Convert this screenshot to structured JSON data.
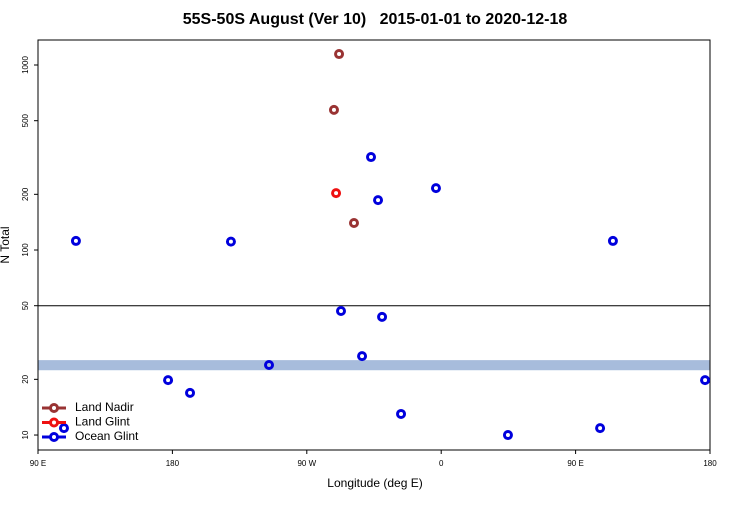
{
  "chart_data": {
    "type": "scatter",
    "title": "55S-50S August (Ver 10)   2015-01-01 to 2020-12-18",
    "xlabel": "Longitude (deg E)",
    "ylabel": "N Total",
    "log_y": true,
    "xlim": [
      90,
      540
    ],
    "xticks": [
      {
        "value": 90,
        "label": "90 E"
      },
      180,
      {
        "value": 270,
        "label": "90 W"
      },
      {
        "value": 360,
        "label": "0"
      },
      {
        "value": 450,
        "label": "90 E"
      },
      {
        "value": 540,
        "label": "180"
      }
    ],
    "ylim": [
      8.3,
      1365
    ],
    "yticks": [
      10,
      20,
      50,
      100,
      200,
      500,
      1000
    ],
    "hline": 50,
    "band": [
      22.4,
      25.4
    ],
    "band_color": "#a7bcdc",
    "legend": "lower left",
    "series": [
      {
        "name": "Land Nadir",
        "color": "#993333",
        "x": [
          291.6,
          288.2,
          301.6
        ],
        "values": [
          1146,
          572,
          140
        ]
      },
      {
        "name": "Land Glint",
        "color": "#ee1111",
        "x": [
          289.6
        ],
        "values": [
          203
        ]
      },
      {
        "name": "Ocean Glint",
        "color": "#0000dd",
        "x": [
          115.4,
          219.2,
          313,
          356.5,
          317.7,
          475,
          292.9,
          320.4,
          307,
          244.7,
          177.1,
          191.8,
          536.7,
          333.1,
          107.4,
          404.7,
          466.4
        ],
        "values": [
          112,
          111,
          318,
          216,
          186,
          112,
          46.8,
          43.5,
          26.7,
          23.9,
          19.8,
          16.9,
          19.8,
          13.0,
          10.9,
          10,
          10.9
        ]
      }
    ]
  }
}
